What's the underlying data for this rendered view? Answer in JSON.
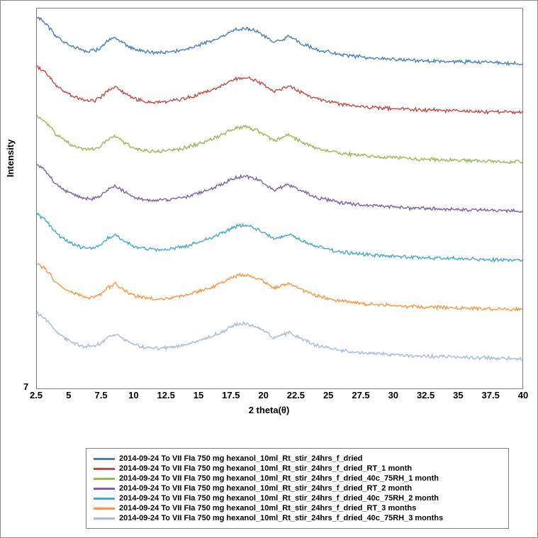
{
  "chart": {
    "type": "line",
    "y_label": "Intensity",
    "x_label": "2 theta(θ)",
    "y_tick_low_label": "7",
    "x_min": 2.5,
    "x_max": 40,
    "x_ticks": [
      2.5,
      5,
      7.5,
      10,
      12.5,
      15,
      17.5,
      20,
      22.5,
      25,
      27.5,
      30,
      32.5,
      35,
      37.5,
      40
    ],
    "x_tick_labels": [
      "2.5",
      "5",
      "7.5",
      "10",
      "12.5",
      "15",
      "17.5",
      "20",
      "22.5",
      "25",
      "27.5",
      "30",
      "32.5",
      "35",
      "37.5",
      "40"
    ],
    "plot_bg": "#ffffff",
    "border_color": "#808080",
    "line_width": 1.4,
    "series": [
      {
        "name": "2014-09-24 To VII FIa 750 mg hexanol_10ml_Rt_stir_24hrs_f_dried",
        "color": "#4a7ebb",
        "offset": 460
      },
      {
        "name": "2014-09-24 To VII FIa 750 mg hexanol_10ml_Rt_stir_24hrs_f_dried_RT_1 month",
        "color": "#be4b48",
        "offset": 390
      },
      {
        "name": "2014-09-24 To VII FIa 750 mg hexanol_10ml_Rt_stir_24hrs_f_dried_40c_75RH_1 month",
        "color": "#98b954",
        "offset": 320
      },
      {
        "name": "2014-09-24 To VII FIa 750 mg hexanol_10ml_Rt_stir_24hrs_f_dried_RT_2 month",
        "color": "#7d60a0",
        "offset": 250
      },
      {
        "name": "2014-09-24 To VII FIa 750 mg hexanol_10ml_Rt_stir_24hrs_f_dried_40c_75RH_2 month",
        "color": "#46aac5",
        "offset": 180
      },
      {
        "name": "2014-09-24 To VII FIa 750 mg hexanol_10ml_Rt_stir_24hrs_f_dried_RT_3 months",
        "color": "#f79646",
        "offset": 110
      },
      {
        "name": "2014-09-24 To VII FIa 750 mg hexanol_10ml_Rt_stir_24hrs_f_dried_40c_75RH_3 months",
        "color": "#a8b9db",
        "offset": 40
      }
    ],
    "base_curve_x": [
      2.5,
      3,
      3.5,
      4,
      5,
      6,
      7,
      7.5,
      8,
      8.6,
      9.2,
      10,
      11,
      12,
      13,
      14,
      15,
      16,
      17,
      17.8,
      18.5,
      19,
      19.6,
      20.2,
      20.8,
      21.4,
      22,
      23,
      24,
      26,
      28,
      30,
      32,
      34,
      36,
      38,
      40
    ],
    "base_curve_y": [
      68,
      62,
      52,
      40,
      28,
      20,
      20,
      25,
      34,
      38,
      30,
      22,
      18,
      17,
      19,
      22,
      28,
      34,
      42,
      50,
      52,
      50,
      46,
      40,
      32,
      36,
      40,
      30,
      22,
      14,
      10,
      8,
      6,
      5,
      4,
      3,
      2
    ],
    "noise_amplitude": 4,
    "points_per_segment": 8
  }
}
